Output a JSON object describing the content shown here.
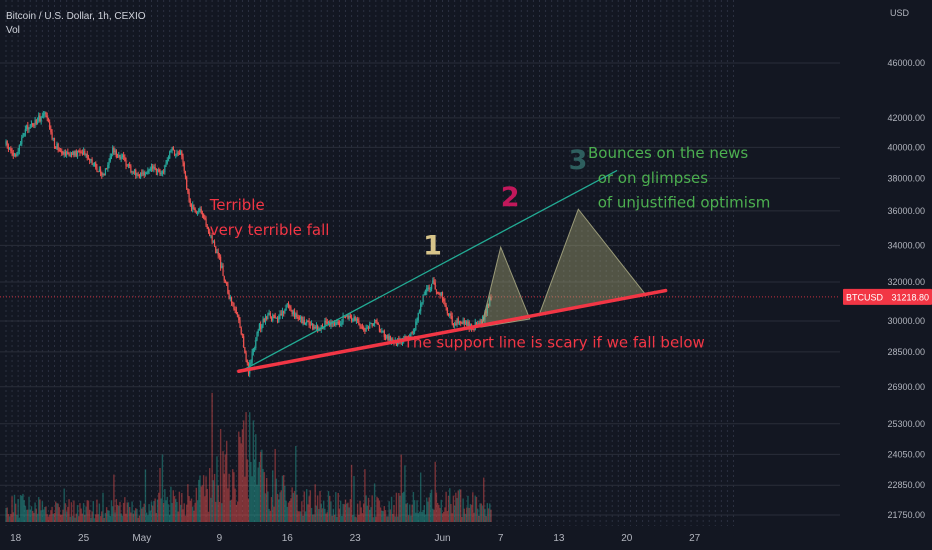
{
  "chart_data": {
    "type": "candlestick",
    "title": "Bitcoin / U.S. Dollar, 1h, CEXIO",
    "indicator": "Vol",
    "price_unit": "USD",
    "symbol": "BTCUSD",
    "last_price": "31218.80",
    "last_price_value": 31218.8,
    "y_scale": "log",
    "ylim": [
      21000,
      50000
    ],
    "y_ticks": [
      {
        "value": 46000,
        "label": "46000.00"
      },
      {
        "value": 42000,
        "label": "42000.00"
      },
      {
        "value": 40000,
        "label": "40000.00"
      },
      {
        "value": 38000,
        "label": "38000.00"
      },
      {
        "value": 36000,
        "label": "36000.00"
      },
      {
        "value": 34000,
        "label": "34000.00"
      },
      {
        "value": 32000,
        "label": "32000.00"
      },
      {
        "value": 30000,
        "label": "30000.00"
      },
      {
        "value": 28500,
        "label": "28500.00"
      },
      {
        "value": 26900,
        "label": "26900.00"
      },
      {
        "value": 25300,
        "label": "25300.00"
      },
      {
        "value": 24050,
        "label": "24050.00"
      },
      {
        "value": 22850,
        "label": "22850.00"
      },
      {
        "value": 21750,
        "label": "21750.00"
      }
    ],
    "x_axis": "date",
    "x_range": [
      "2022-04-17",
      "2022-07-01"
    ],
    "data_end": "2022-06-06",
    "x_ticks": [
      {
        "date": "2022-04-18",
        "label": "18"
      },
      {
        "date": "2022-04-25",
        "label": "25"
      },
      {
        "date": "2022-05-01",
        "label": "May"
      },
      {
        "date": "2022-05-09",
        "label": "9"
      },
      {
        "date": "2022-05-16",
        "label": "16"
      },
      {
        "date": "2022-05-23",
        "label": "23"
      },
      {
        "date": "2022-06-01",
        "label": "Jun"
      },
      {
        "date": "2022-06-07",
        "label": "7"
      },
      {
        "date": "2022-06-13",
        "label": "13"
      },
      {
        "date": "2022-06-20",
        "label": "20"
      },
      {
        "date": "2022-06-27",
        "label": "27"
      }
    ],
    "price_path": [
      [
        "2022-04-17",
        40200
      ],
      [
        "2022-04-18",
        39300
      ],
      [
        "2022-04-19",
        41200
      ],
      [
        "2022-04-20",
        41700
      ],
      [
        "2022-04-21",
        42300
      ],
      [
        "2022-04-22",
        40200
      ],
      [
        "2022-04-23",
        39700
      ],
      [
        "2022-04-24",
        39500
      ],
      [
        "2022-04-25",
        39800
      ],
      [
        "2022-04-26",
        38900
      ],
      [
        "2022-04-27",
        38200
      ],
      [
        "2022-04-28",
        39800
      ],
      [
        "2022-04-29",
        39300
      ],
      [
        "2022-04-30",
        38500
      ],
      [
        "2022-05-01",
        38100
      ],
      [
        "2022-05-02",
        38700
      ],
      [
        "2022-05-03",
        38200
      ],
      [
        "2022-05-04",
        39800
      ],
      [
        "2022-05-05",
        39600
      ],
      [
        "2022-05-06",
        36300
      ],
      [
        "2022-05-07",
        35900
      ],
      [
        "2022-05-08",
        34700
      ],
      [
        "2022-05-09",
        33200
      ],
      [
        "2022-05-10",
        31200
      ],
      [
        "2022-05-11",
        30100
      ],
      [
        "2022-05-12",
        27600
      ],
      [
        "2022-05-13",
        29600
      ],
      [
        "2022-05-14",
        30300
      ],
      [
        "2022-05-15",
        30000
      ],
      [
        "2022-05-16",
        30800
      ],
      [
        "2022-05-17",
        30200
      ],
      [
        "2022-05-18",
        29900
      ],
      [
        "2022-05-19",
        29600
      ],
      [
        "2022-05-20",
        30000
      ],
      [
        "2022-05-21",
        29800
      ],
      [
        "2022-05-22",
        30200
      ],
      [
        "2022-05-23",
        30100
      ],
      [
        "2022-05-24",
        29600
      ],
      [
        "2022-05-25",
        29900
      ],
      [
        "2022-05-26",
        29300
      ],
      [
        "2022-05-27",
        28900
      ],
      [
        "2022-05-28",
        29100
      ],
      [
        "2022-05-29",
        29400
      ],
      [
        "2022-05-30",
        31300
      ],
      [
        "2022-05-31",
        31900
      ],
      [
        "2022-06-01",
        31200
      ],
      [
        "2022-06-02",
        29900
      ],
      [
        "2022-06-03",
        30000
      ],
      [
        "2022-06-04",
        29700
      ],
      [
        "2022-06-05",
        29900
      ],
      [
        "2022-06-06",
        31200
      ]
    ],
    "volume_path": [
      [
        "2022-04-17",
        0.25
      ],
      [
        "2022-04-24",
        0.2
      ],
      [
        "2022-05-01",
        0.22
      ],
      [
        "2022-05-06",
        0.35
      ],
      [
        "2022-05-09",
        0.6
      ],
      [
        "2022-05-12",
        1.0
      ],
      [
        "2022-05-14",
        0.5
      ],
      [
        "2022-05-18",
        0.3
      ],
      [
        "2022-05-25",
        0.22
      ],
      [
        "2022-05-31",
        0.3
      ],
      [
        "2022-06-06",
        0.25
      ]
    ],
    "annotations": {
      "support_line": {
        "from": [
          "2022-05-11",
          27600
        ],
        "to": [
          "2022-06-24",
          31550
        ],
        "color": "#f23645"
      },
      "resistance_line": {
        "from": [
          "2022-05-11",
          27550
        ],
        "to": [
          "2022-06-19",
          38500
        ],
        "color": "#22ab94"
      },
      "triangles": [
        [
          [
            "2022-06-05",
            29700
          ],
          [
            "2022-06-07",
            33900
          ],
          [
            "2022-06-10",
            30100
          ]
        ],
        [
          [
            "2022-06-11",
            30350
          ],
          [
            "2022-06-15",
            36100
          ],
          [
            "2022-06-22",
            31300
          ]
        ]
      ],
      "texts": [
        {
          "id": "fall-1",
          "text": "Terrible",
          "at": [
            "2022-05-08",
            36050
          ],
          "color": "#f23645",
          "size": 15
        },
        {
          "id": "fall-2",
          "text": "very terrible fall",
          "at": [
            "2022-05-08",
            34600
          ],
          "color": "#f23645",
          "size": 15
        },
        {
          "id": "support",
          "text": "The support line is scary if we fall below",
          "at": [
            "2022-05-28",
            28700
          ],
          "color": "#f23645",
          "size": 15
        },
        {
          "id": "num-1",
          "text": "1",
          "at": [
            "2022-05-30",
            33500
          ],
          "color": "#d7c48a",
          "size": 27
        },
        {
          "id": "num-2",
          "text": "2",
          "at": [
            "2022-06-07",
            36300
          ],
          "color": "#c2185b",
          "size": 27
        },
        {
          "id": "num-3",
          "text": "3",
          "at": [
            "2022-06-14",
            38600
          ],
          "color": "#2e5e5e",
          "size": 27
        },
        {
          "id": "bounce-1",
          "text": "Bounces on the news",
          "at": [
            "2022-06-16",
            39300
          ],
          "color": "#4caf50",
          "size": 15
        },
        {
          "id": "bounce-2",
          "text": "or on glimpses",
          "at": [
            "2022-06-17",
            37700
          ],
          "color": "#4caf50",
          "size": 15
        },
        {
          "id": "bounce-3",
          "text": "of unjustified optimism",
          "at": [
            "2022-06-17",
            36200
          ],
          "color": "#4caf50",
          "size": 15
        }
      ]
    },
    "colors": {
      "background": "#131722",
      "up": "#26a69a",
      "down": "#ef5350",
      "grid": "#2a2e39",
      "price_tag": "#f23645"
    }
  }
}
